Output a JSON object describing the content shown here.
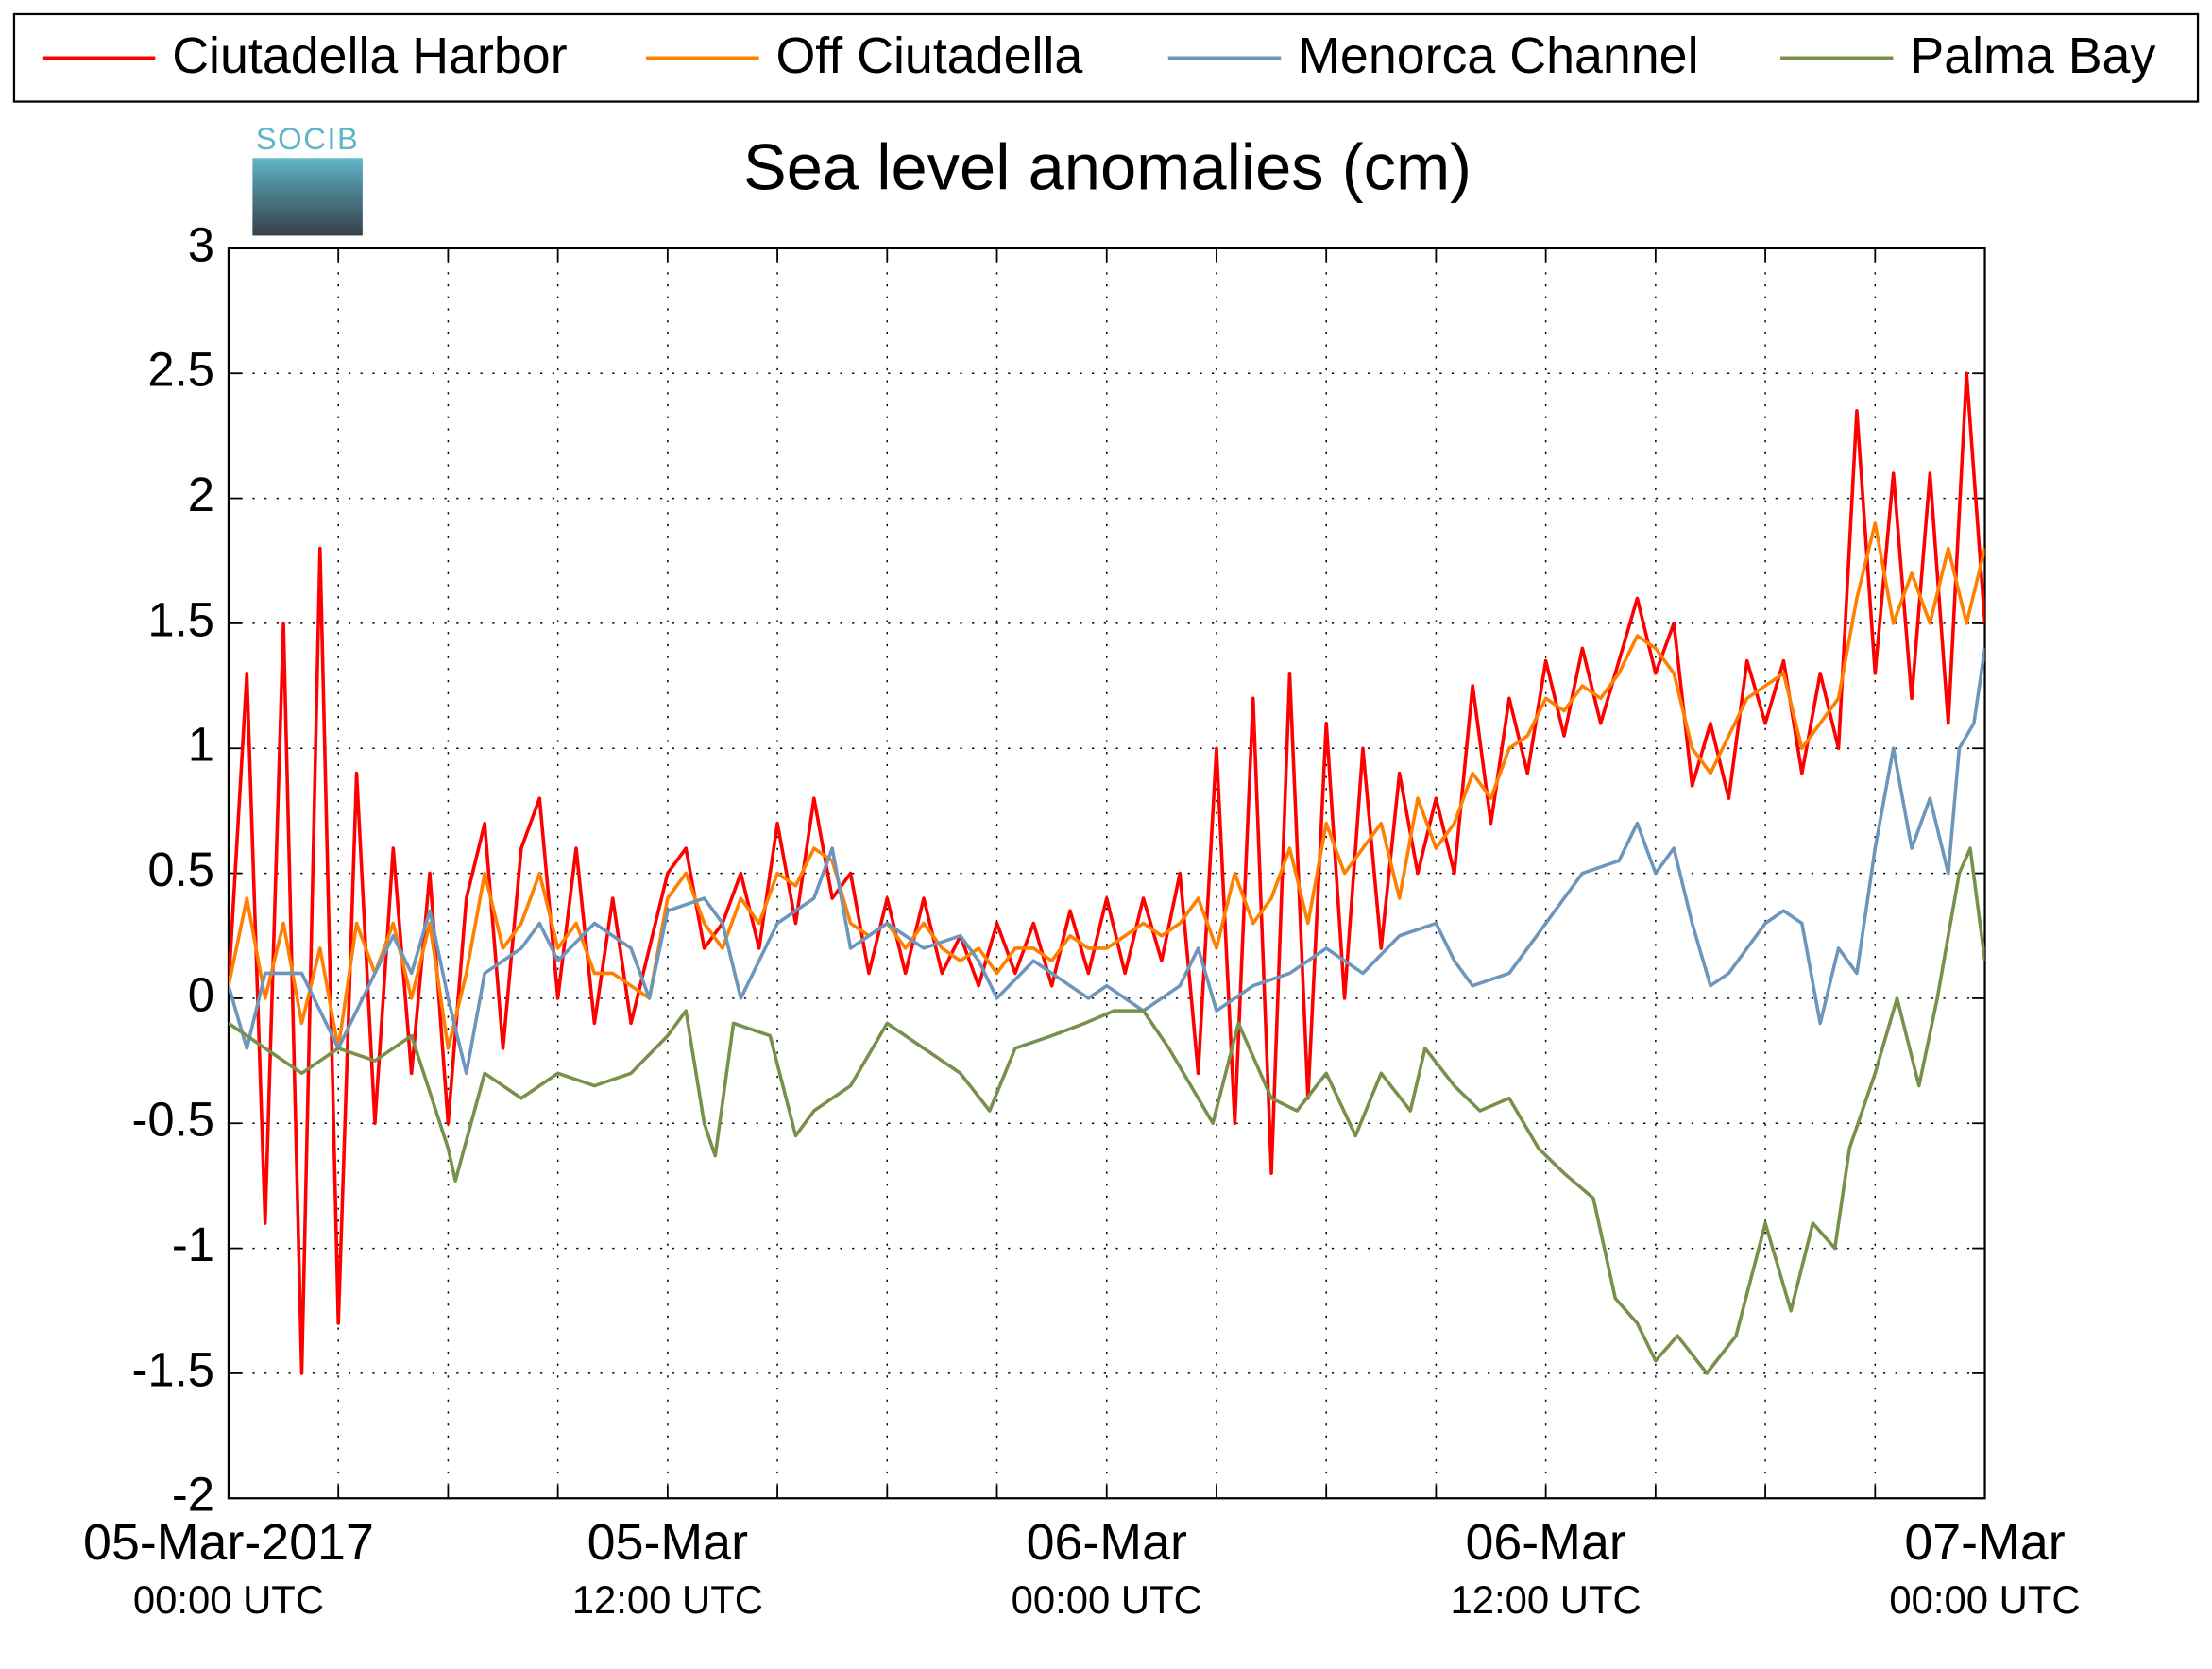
{
  "chart_data": {
    "type": "line",
    "title": "Sea level anomalies (cm)",
    "logo_text": "SOCIB",
    "legend": "top",
    "grid": true,
    "xlim": [
      0,
      48
    ],
    "xticks": [
      0,
      3,
      6,
      9,
      12,
      15,
      18,
      21,
      24,
      27,
      30,
      33,
      36,
      39,
      42,
      45,
      48
    ],
    "xtick_labels": [
      {
        "value": 0,
        "label": "05-Mar-2017",
        "sublabel": "00:00 UTC"
      },
      {
        "value": 12,
        "label": "05-Mar",
        "sublabel": "12:00 UTC"
      },
      {
        "value": 24,
        "label": "06-Mar",
        "sublabel": "00:00 UTC"
      },
      {
        "value": 36,
        "label": "06-Mar",
        "sublabel": "12:00 UTC"
      },
      {
        "value": 48,
        "label": "07-Mar",
        "sublabel": "00:00 UTC"
      }
    ],
    "ylim": [
      -2,
      3
    ],
    "yticks": [
      -2,
      -1.5,
      -1,
      -0.5,
      0,
      0.5,
      1,
      1.5,
      2,
      2.5,
      3
    ],
    "series": [
      {
        "name": "Ciutadella Harbor",
        "color": "#ff0000",
        "x": [
          0,
          0.5,
          1,
          1.5,
          2,
          2.5,
          3,
          3.5,
          4,
          4.5,
          5,
          5.5,
          6,
          6.5,
          7,
          7.5,
          8,
          8.5,
          9,
          9.5,
          10,
          10.5,
          11,
          11.5,
          12,
          12.5,
          13,
          13.5,
          14,
          14.5,
          15,
          15.5,
          16,
          16.5,
          17,
          17.5,
          18,
          18.5,
          19,
          19.5,
          20,
          20.5,
          21,
          21.5,
          22,
          22.5,
          23,
          23.5,
          24,
          24.5,
          25,
          25.5,
          26,
          26.5,
          27,
          27.5,
          28,
          28.5,
          29,
          29.5,
          30,
          30.5,
          31,
          31.5,
          32,
          32.5,
          33,
          33.5,
          34,
          34.5,
          35,
          35.5,
          36,
          36.5,
          37,
          37.5,
          38,
          38.5,
          39,
          39.5,
          40,
          40.5,
          41,
          41.5,
          42,
          42.5,
          43,
          43.5,
          44,
          44.5,
          45,
          45.5,
          46,
          46.5,
          47,
          47.5,
          48
        ],
        "values": [
          0.05,
          1.3,
          -0.9,
          1.5,
          -1.5,
          1.8,
          -1.3,
          0.9,
          -0.5,
          0.6,
          -0.3,
          0.5,
          -0.5,
          0.4,
          0.7,
          -0.2,
          0.6,
          0.8,
          0,
          0.6,
          -0.1,
          0.4,
          -0.1,
          0.2,
          0.5,
          0.6,
          0.2,
          0.3,
          0.5,
          0.2,
          0.7,
          0.3,
          0.8,
          0.4,
          0.5,
          0.1,
          0.4,
          0.1,
          0.4,
          0.1,
          0.25,
          0.05,
          0.3,
          0.1,
          0.3,
          0.05,
          0.35,
          0.1,
          0.4,
          0.1,
          0.4,
          0.15,
          0.5,
          -0.3,
          1.0,
          -0.5,
          1.2,
          -0.7,
          1.3,
          -0.4,
          1.1,
          0,
          1.0,
          0.2,
          0.9,
          0.5,
          0.8,
          0.5,
          1.25,
          0.7,
          1.2,
          0.9,
          1.35,
          1.05,
          1.4,
          1.1,
          1.35,
          1.6,
          1.3,
          1.5,
          0.85,
          1.1,
          0.8,
          1.35,
          1.1,
          1.35,
          0.9,
          1.3,
          1.0,
          2.35,
          1.3,
          2.1,
          1.2,
          2.1,
          1.1,
          2.5,
          1.5
        ]
      },
      {
        "name": "Off Ciutadella",
        "color": "#ff8000",
        "x": [
          0,
          0.5,
          1,
          1.5,
          2,
          2.5,
          3,
          3.5,
          4,
          4.5,
          5,
          5.5,
          6,
          6.5,
          7,
          7.5,
          8,
          8.5,
          9,
          9.5,
          10,
          10.5,
          11,
          11.5,
          12,
          12.5,
          13,
          13.5,
          14,
          14.5,
          15,
          15.5,
          16,
          16.5,
          17,
          17.5,
          18,
          18.5,
          19,
          19.5,
          20,
          20.5,
          21,
          21.5,
          22,
          22.5,
          23,
          23.5,
          24,
          24.5,
          25,
          25.5,
          26,
          26.5,
          27,
          27.5,
          28,
          28.5,
          29,
          29.5,
          30,
          30.5,
          31,
          31.5,
          32,
          32.5,
          33,
          33.5,
          34,
          34.5,
          35,
          35.5,
          36,
          36.5,
          37,
          37.5,
          38,
          38.5,
          39,
          39.5,
          40,
          40.5,
          41,
          41.5,
          42,
          42.5,
          43,
          43.5,
          44,
          44.5,
          45,
          45.5,
          46,
          46.5,
          47,
          47.5,
          48
        ],
        "values": [
          0.05,
          0.4,
          0,
          0.3,
          -0.1,
          0.2,
          -0.2,
          0.3,
          0.1,
          0.3,
          0,
          0.3,
          -0.2,
          0.1,
          0.5,
          0.2,
          0.3,
          0.5,
          0.2,
          0.3,
          0.1,
          0.1,
          0.05,
          0,
          0.4,
          0.5,
          0.3,
          0.2,
          0.4,
          0.3,
          0.5,
          0.45,
          0.6,
          0.55,
          0.3,
          0.25,
          0.3,
          0.2,
          0.3,
          0.2,
          0.15,
          0.2,
          0.1,
          0.2,
          0.2,
          0.15,
          0.25,
          0.2,
          0.2,
          0.25,
          0.3,
          0.25,
          0.3,
          0.4,
          0.2,
          0.5,
          0.3,
          0.4,
          0.6,
          0.3,
          0.7,
          0.5,
          0.6,
          0.7,
          0.4,
          0.8,
          0.6,
          0.7,
          0.9,
          0.8,
          1.0,
          1.05,
          1.2,
          1.15,
          1.25,
          1.2,
          1.3,
          1.45,
          1.4,
          1.3,
          1.0,
          0.9,
          1.05,
          1.2,
          1.25,
          1.3,
          1.0,
          1.1,
          1.2,
          1.6,
          1.9,
          1.5,
          1.7,
          1.5,
          1.8,
          1.5,
          1.8
        ]
      },
      {
        "name": "Menorca Channel",
        "color": "#6d96bd",
        "x": [
          0,
          0.5,
          1,
          2,
          3,
          4,
          4.5,
          5,
          5.5,
          6,
          6.5,
          7,
          8,
          8.5,
          9,
          10,
          11,
          11.5,
          12,
          13,
          13.5,
          14,
          15,
          16,
          16.5,
          17,
          18,
          19,
          20,
          20.5,
          21,
          22,
          23,
          23.5,
          24,
          25,
          26,
          26.5,
          27,
          28,
          29,
          30,
          31,
          32,
          33,
          33.5,
          34,
          35,
          36,
          37,
          38,
          38.5,
          39,
          39.5,
          40,
          40.5,
          41,
          42,
          42.5,
          43,
          43.5,
          44,
          44.5,
          45,
          45.5,
          46,
          46.5,
          47,
          47.3,
          47.7,
          48
        ],
        "values": [
          0.05,
          -0.2,
          0.1,
          0.1,
          -0.2,
          0.1,
          0.25,
          0.1,
          0.35,
          0,
          -0.3,
          0.1,
          0.2,
          0.3,
          0.15,
          0.3,
          0.2,
          0,
          0.35,
          0.4,
          0.3,
          0,
          0.3,
          0.4,
          0.6,
          0.2,
          0.3,
          0.2,
          0.25,
          0.15,
          0,
          0.15,
          0.05,
          0,
          0.05,
          -0.05,
          0.05,
          0.2,
          -0.05,
          0.05,
          0.1,
          0.2,
          0.1,
          0.25,
          0.3,
          0.15,
          0.05,
          0.1,
          0.3,
          0.5,
          0.55,
          0.7,
          0.5,
          0.6,
          0.3,
          0.05,
          0.1,
          0.3,
          0.35,
          0.3,
          -0.1,
          0.2,
          0.1,
          0.6,
          1.0,
          0.6,
          0.8,
          0.5,
          1.0,
          1.1,
          1.4
        ]
      },
      {
        "name": "Palma Bay",
        "color": "#77904a",
        "x": [
          0,
          1,
          2,
          3,
          4,
          5,
          6,
          6.2,
          7,
          8,
          9,
          10,
          11,
          12,
          12.5,
          13,
          13.3,
          13.8,
          14.8,
          15.5,
          16,
          17,
          18,
          19,
          20,
          20.8,
          21.5,
          22.5,
          23.4,
          24.2,
          25,
          25.7,
          26.5,
          26.9,
          27.6,
          28.5,
          29.2,
          30,
          30.8,
          31.5,
          32.3,
          32.7,
          33.5,
          34.2,
          35,
          35.8,
          36.5,
          37.3,
          37.9,
          38.5,
          39,
          39.6,
          40.4,
          41.2,
          42,
          42.7,
          43.3,
          43.9,
          44.3,
          45,
          45.6,
          46.2,
          46.7,
          47.3,
          47.6,
          48
        ],
        "values": [
          -0.1,
          -0.2,
          -0.3,
          -0.2,
          -0.25,
          -0.15,
          -0.6,
          -0.73,
          -0.3,
          -0.4,
          -0.3,
          -0.35,
          -0.3,
          -0.15,
          -0.05,
          -0.5,
          -0.63,
          -0.1,
          -0.15,
          -0.55,
          -0.45,
          -0.35,
          -0.1,
          -0.2,
          -0.3,
          -0.45,
          -0.2,
          -0.15,
          -0.1,
          -0.05,
          -0.05,
          -0.2,
          -0.4,
          -0.5,
          -0.1,
          -0.4,
          -0.45,
          -0.3,
          -0.55,
          -0.3,
          -0.45,
          -0.2,
          -0.35,
          -0.45,
          -0.4,
          -0.6,
          -0.7,
          -0.8,
          -1.2,
          -1.3,
          -1.45,
          -1.35,
          -1.5,
          -1.35,
          -0.9,
          -1.25,
          -0.9,
          -1.0,
          -0.6,
          -0.3,
          0,
          -0.35,
          0,
          0.5,
          0.6,
          0.15
        ]
      }
    ]
  }
}
